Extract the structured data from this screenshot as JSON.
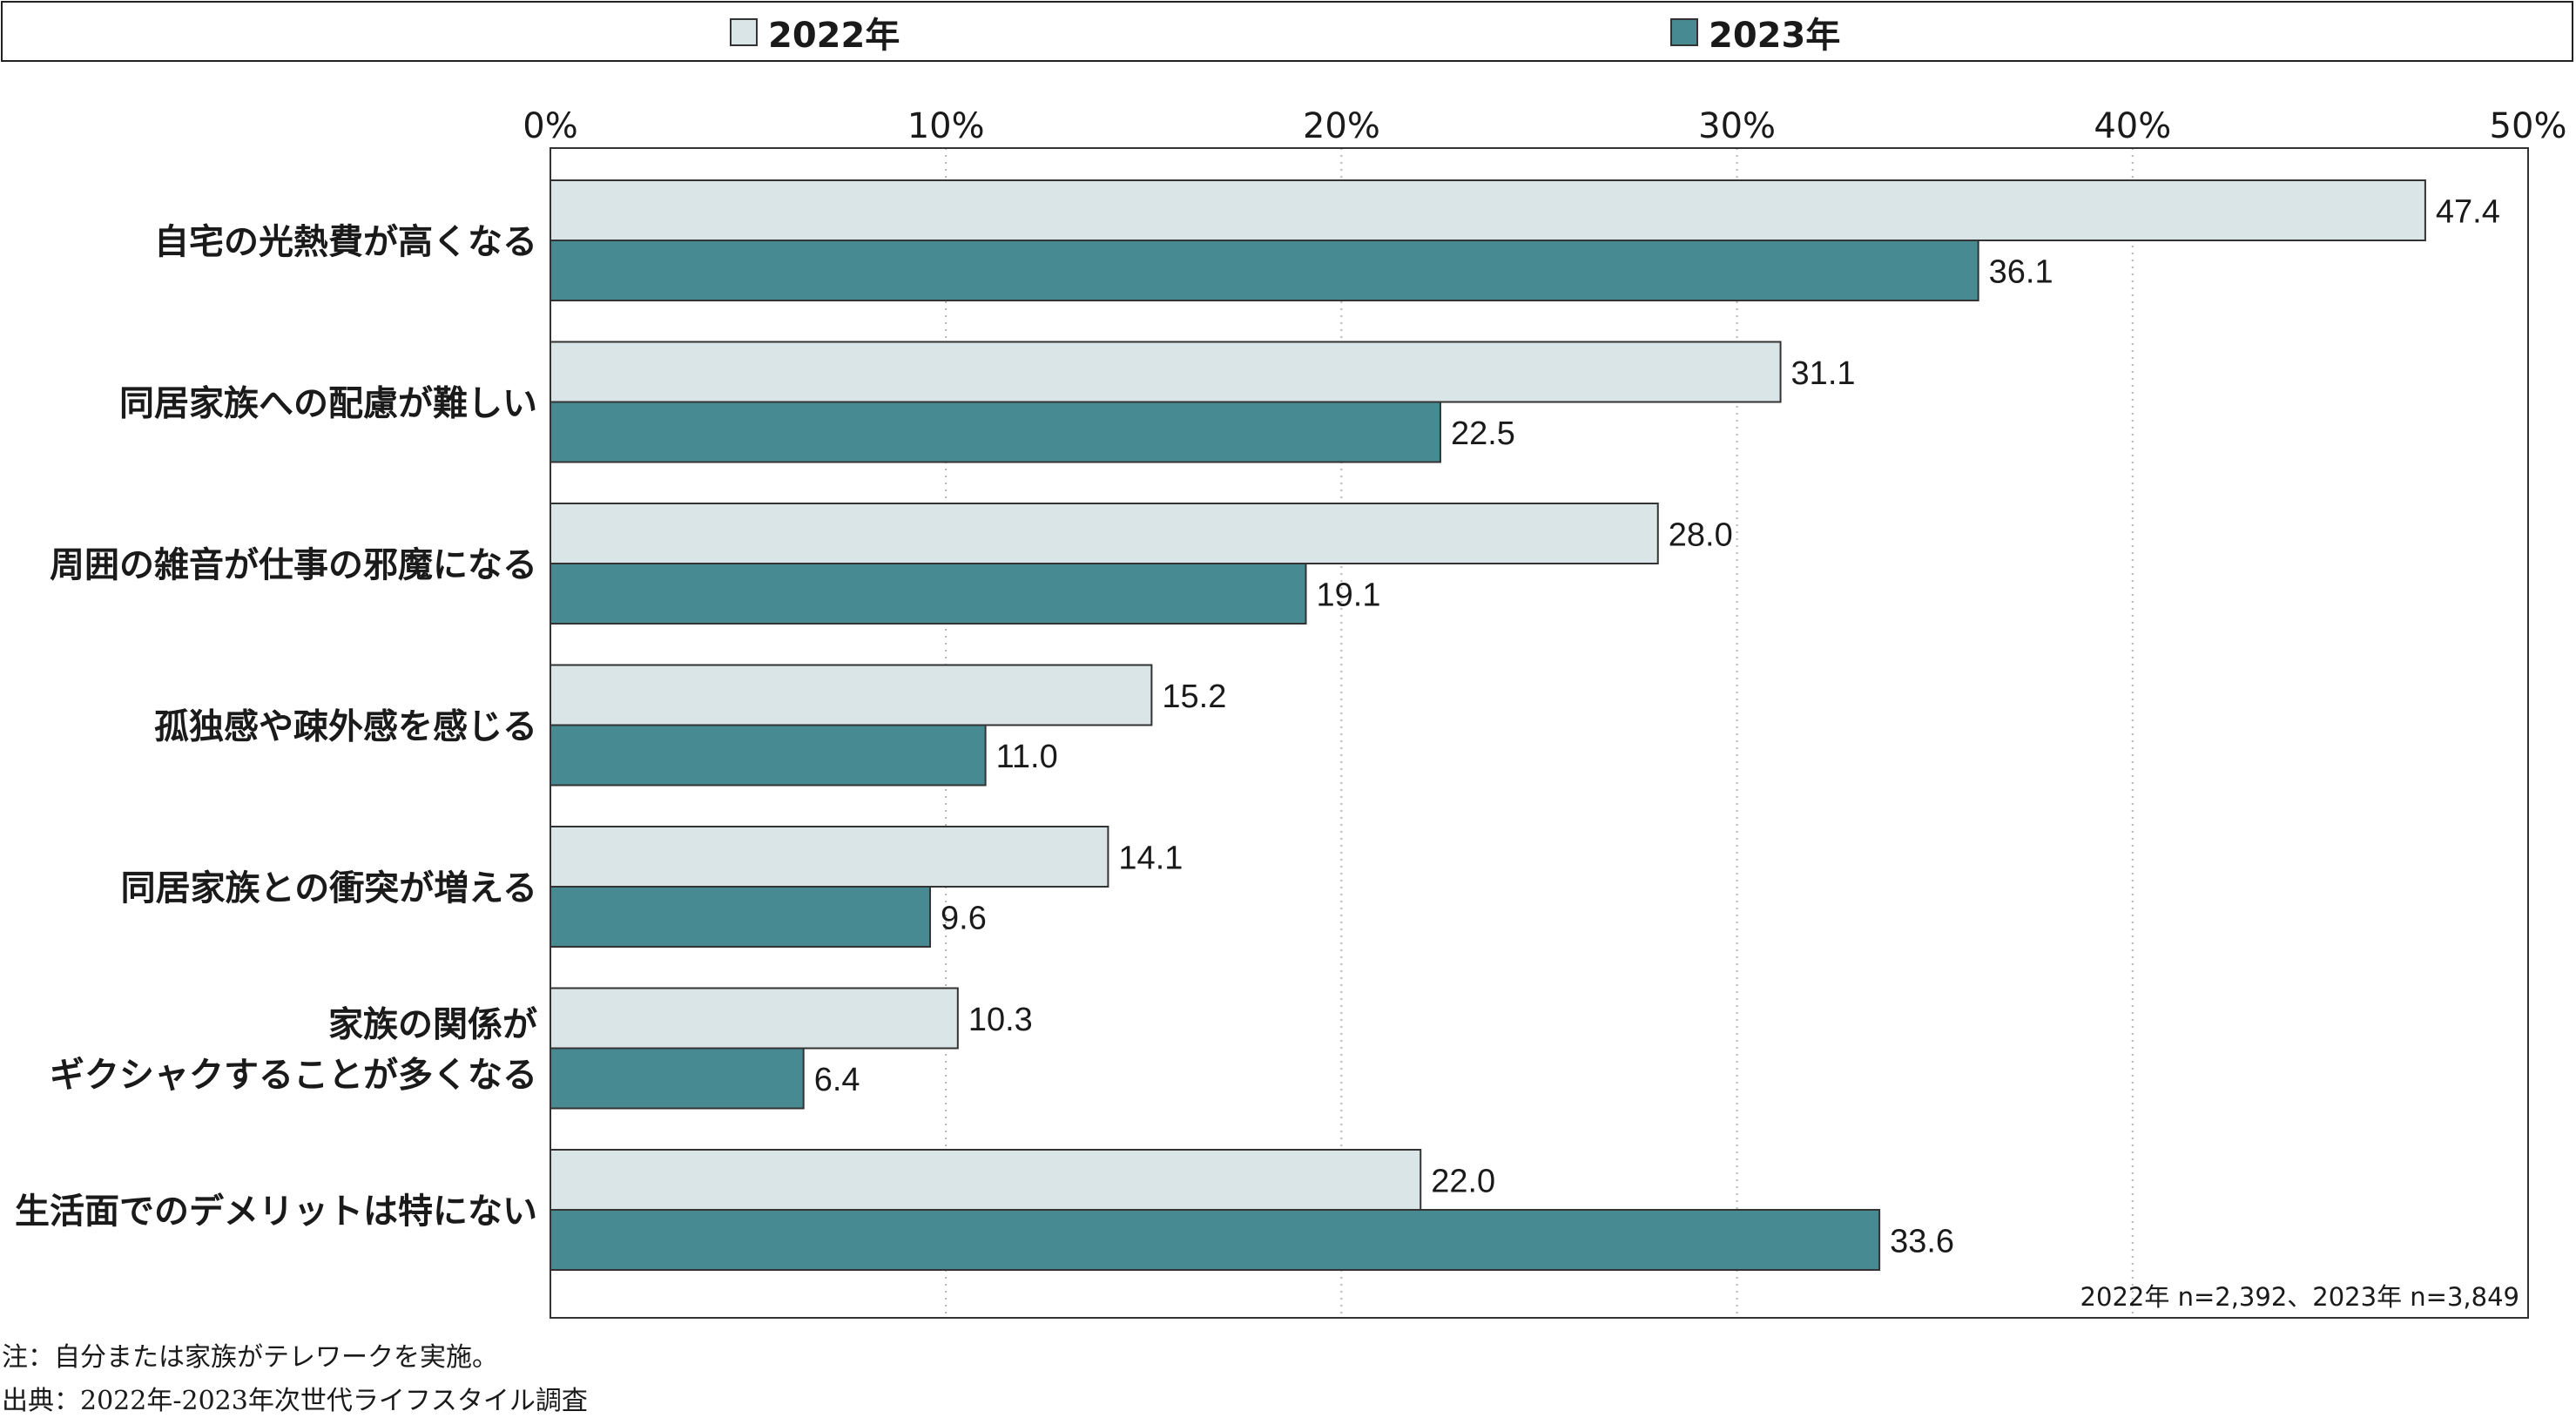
{
  "legend": {
    "items": [
      {
        "label": "2022年",
        "color": "#d9e5e6"
      },
      {
        "label": "2023年",
        "color": "#478a92"
      }
    ]
  },
  "sample_note": "2022年 n=2,392、2023年 n=3,849",
  "notes": {
    "note1": "注：自分または家族がテレワークを実施。",
    "note2": "出典：2022年-2023年次世代ライフスタイル調査"
  },
  "chart_data": {
    "type": "bar",
    "orientation": "horizontal",
    "categories": [
      [
        "自宅の光熱費が高くなる"
      ],
      [
        "同居家族への配慮が難しい"
      ],
      [
        "周囲の雑音が仕事の邪魔になる"
      ],
      [
        "孤独感や疎外感を感じる"
      ],
      [
        "同居家族との衝突が増える"
      ],
      [
        "家族の関係が",
        "ギクシャクすることが多くなる"
      ],
      [
        "生活面でのデメリットは特にない"
      ]
    ],
    "series": [
      {
        "name": "2022年",
        "color": "#d9e5e6",
        "values": [
          47.4,
          31.1,
          28.0,
          15.2,
          14.1,
          10.3,
          22.0
        ],
        "labels": [
          "47.4",
          "31.1",
          "28.0",
          "15.2",
          "14.1",
          "10.3",
          "22.0"
        ]
      },
      {
        "name": "2023年",
        "color": "#478a92",
        "values": [
          36.1,
          22.5,
          19.1,
          11.0,
          9.6,
          6.4,
          33.6
        ],
        "labels": [
          "36.1",
          "22.5",
          "19.1",
          "11.0",
          "9.6",
          "6.4",
          "33.6"
        ]
      }
    ],
    "xlim": [
      0,
      50
    ],
    "xticks": [
      "0%",
      "10%",
      "20%",
      "30%",
      "40%",
      "50%"
    ],
    "grid": "vertical dotted",
    "legend_position": "top"
  }
}
